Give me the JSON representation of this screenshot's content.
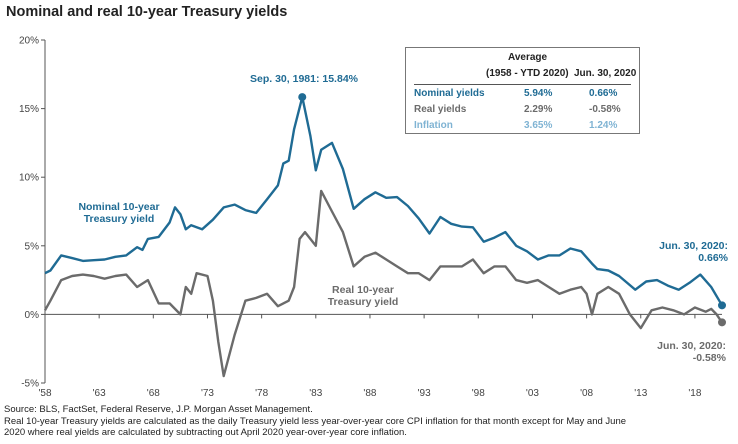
{
  "chart_title": "Nominal and real 10-year Treasury yields",
  "colors": {
    "nominal": "#1f6b94",
    "real": "#6b6b6b",
    "inflation": "#7fb3d3"
  },
  "chart_data": {
    "type": "line",
    "title": "Nominal and real 10-year Treasury yields",
    "xlabel": "",
    "ylabel": "",
    "xlim": [
      1958,
      2020.5
    ],
    "ylim": [
      -5,
      20
    ],
    "y_ticks": [
      "20%",
      "15%",
      "10%",
      "5%",
      "0%",
      "-5%"
    ],
    "y_tick_values": [
      20,
      15,
      10,
      5,
      0,
      -5
    ],
    "x_ticks": [
      "'58",
      "'63",
      "'68",
      "'73",
      "'78",
      "'83",
      "'88",
      "'93",
      "'98",
      "'03",
      "'08",
      "'13",
      "'18"
    ],
    "x_tick_values": [
      1958,
      1963,
      1968,
      1973,
      1978,
      1983,
      1988,
      1993,
      1998,
      2003,
      2008,
      2013,
      2018
    ],
    "grid": false,
    "series": [
      {
        "name": "Nominal 10-year Treasury yield",
        "x": [
          1958,
          1958.5,
          1959.5,
          1960.5,
          1961.5,
          1962.5,
          1963.5,
          1964.5,
          1965.5,
          1966.5,
          1967,
          1967.5,
          1968.5,
          1969.5,
          1970,
          1970.5,
          1971,
          1971.5,
          1972.5,
          1973.5,
          1974.5,
          1975.5,
          1976.5,
          1977.5,
          1978.5,
          1979.5,
          1980,
          1980.5,
          1981,
          1981.75,
          1982.5,
          1983,
          1983.5,
          1984.5,
          1985.5,
          1986.5,
          1987.5,
          1988.5,
          1989.5,
          1990.5,
          1991.5,
          1992.5,
          1993.5,
          1994.5,
          1995.5,
          1996.5,
          1997.5,
          1998.5,
          1999.5,
          2000.5,
          2001.5,
          2002.5,
          2003.5,
          2004.5,
          2005.5,
          2006.5,
          2007.5,
          2008.5,
          2009,
          2010,
          2011,
          2012.5,
          2013.5,
          2014.5,
          2015.5,
          2016.5,
          2017.5,
          2018.5,
          2019.5,
          2020.5
        ],
        "values": [
          3.0,
          3.2,
          4.3,
          4.1,
          3.9,
          3.95,
          4.0,
          4.2,
          4.3,
          4.9,
          4.7,
          5.5,
          5.65,
          6.7,
          7.8,
          7.3,
          6.2,
          6.5,
          6.2,
          6.9,
          7.8,
          8.0,
          7.6,
          7.4,
          8.4,
          9.4,
          11.0,
          11.2,
          13.5,
          15.84,
          13.0,
          10.5,
          12.0,
          12.5,
          10.6,
          7.7,
          8.4,
          8.9,
          8.5,
          8.55,
          7.9,
          7.0,
          5.9,
          7.1,
          6.6,
          6.4,
          6.35,
          5.3,
          5.6,
          6.0,
          5.0,
          4.6,
          4.0,
          4.3,
          4.3,
          4.8,
          4.6,
          3.7,
          3.3,
          3.2,
          2.8,
          1.8,
          2.4,
          2.5,
          2.1,
          1.8,
          2.3,
          2.9,
          2.0,
          0.66
        ]
      },
      {
        "name": "Real 10-year Treasury yield",
        "x": [
          1958,
          1958.5,
          1959.5,
          1960.5,
          1961.5,
          1962.5,
          1963.5,
          1964.5,
          1965.5,
          1966.5,
          1967.5,
          1968.5,
          1969.5,
          1970.5,
          1971,
          1971.5,
          1972,
          1973,
          1973.5,
          1974,
          1974.5,
          1975.5,
          1976.5,
          1977.5,
          1978.5,
          1979.5,
          1980,
          1980.5,
          1981,
          1981.5,
          1982,
          1983,
          1983.5,
          1984.5,
          1985.5,
          1986.5,
          1987.5,
          1988.5,
          1989.5,
          1990.5,
          1991.5,
          1992.5,
          1993.5,
          1994.5,
          1995.5,
          1996.5,
          1997.5,
          1998.5,
          1999.5,
          2000.5,
          2001.5,
          2002.5,
          2003.5,
          2004.5,
          2005.5,
          2006.5,
          2007.5,
          2008,
          2008.5,
          2009,
          2010,
          2011,
          2012,
          2013,
          2014,
          2015,
          2016,
          2017,
          2018,
          2019,
          2019.5,
          2020,
          2020.5
        ],
        "values": [
          0.3,
          1.0,
          2.5,
          2.8,
          2.9,
          2.8,
          2.6,
          2.8,
          2.9,
          2.0,
          2.5,
          0.8,
          0.8,
          0.0,
          2.0,
          1.5,
          3.0,
          2.8,
          1.0,
          -2.0,
          -4.5,
          -1.5,
          1.0,
          1.2,
          1.5,
          0.6,
          0.8,
          1.0,
          2.0,
          5.5,
          6.0,
          5.0,
          9.0,
          7.5,
          6.0,
          3.5,
          4.2,
          4.5,
          4.0,
          3.5,
          3.0,
          3.0,
          2.5,
          3.5,
          3.5,
          3.5,
          4.0,
          3.0,
          3.5,
          3.5,
          2.5,
          2.3,
          2.5,
          2.0,
          1.5,
          1.8,
          2.0,
          1.5,
          0.0,
          1.5,
          2.0,
          1.5,
          0.0,
          -1.0,
          0.3,
          0.5,
          0.3,
          0.0,
          0.5,
          0.2,
          0.4,
          0.0,
          -0.58
        ]
      }
    ],
    "annotations": {
      "peak": "Sep. 30, 1981: 15.84%",
      "nominal_line1": "Nominal 10-year",
      "nominal_line2": "Treasury yield",
      "real_line1": "Real 10-year",
      "real_line2": "Treasury yield",
      "end_nominal_line1": "Jun. 30, 2020:",
      "end_nominal_line2": "0.66%",
      "end_real_line1": "Jun. 30, 2020:",
      "end_real_line2": "-0.58%"
    },
    "table": {
      "header_average": "Average",
      "header_period": "(1958 - YTD 2020)",
      "header_date": "Jun. 30, 2020",
      "rows": [
        {
          "label": "Nominal yields",
          "average": "5.94%",
          "latest": "0.66%"
        },
        {
          "label": "Real yields",
          "average": "2.29%",
          "latest": "-0.58%"
        },
        {
          "label": "Inflation",
          "average": "3.65%",
          "latest": "1.24%"
        }
      ]
    }
  },
  "footer": {
    "source": "Source: BLS, FactSet, Federal Reserve, J.P. Morgan Asset Management.",
    "note_line1": "Real 10-year Treasury yields are calculated as the daily Treasury yield less year-over-year core CPI inflation for that month except for May and June",
    "note_line2": "2020 where real yields are calculated by subtracting out April 2020 year-over-year core inflation."
  }
}
